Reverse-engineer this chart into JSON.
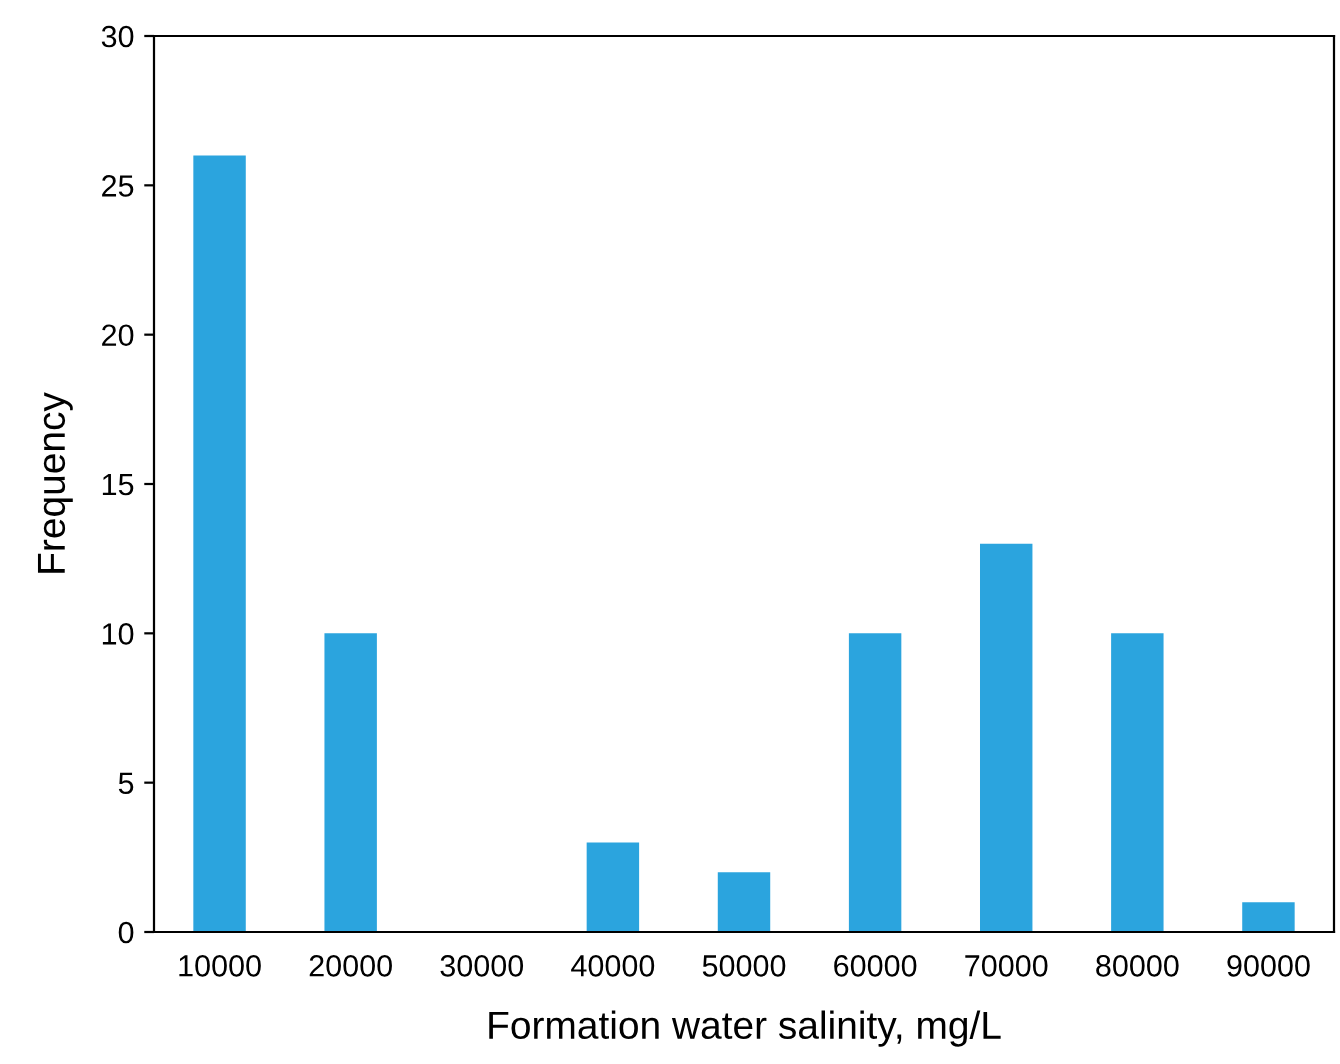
{
  "chart_data": {
    "type": "bar",
    "xlabel": "Formation water salinity, mg/L",
    "ylabel": "Frequency",
    "categories": [
      "10000",
      "20000",
      "30000",
      "40000",
      "50000",
      "60000",
      "70000",
      "80000",
      "90000"
    ],
    "values": [
      26,
      10,
      0,
      3,
      2,
      10,
      13,
      10,
      1
    ],
    "color": "#2ba4de",
    "ylim": [
      0,
      30
    ],
    "yticks": [
      0,
      5,
      10,
      15,
      20,
      25,
      30
    ],
    "grid": false
  }
}
